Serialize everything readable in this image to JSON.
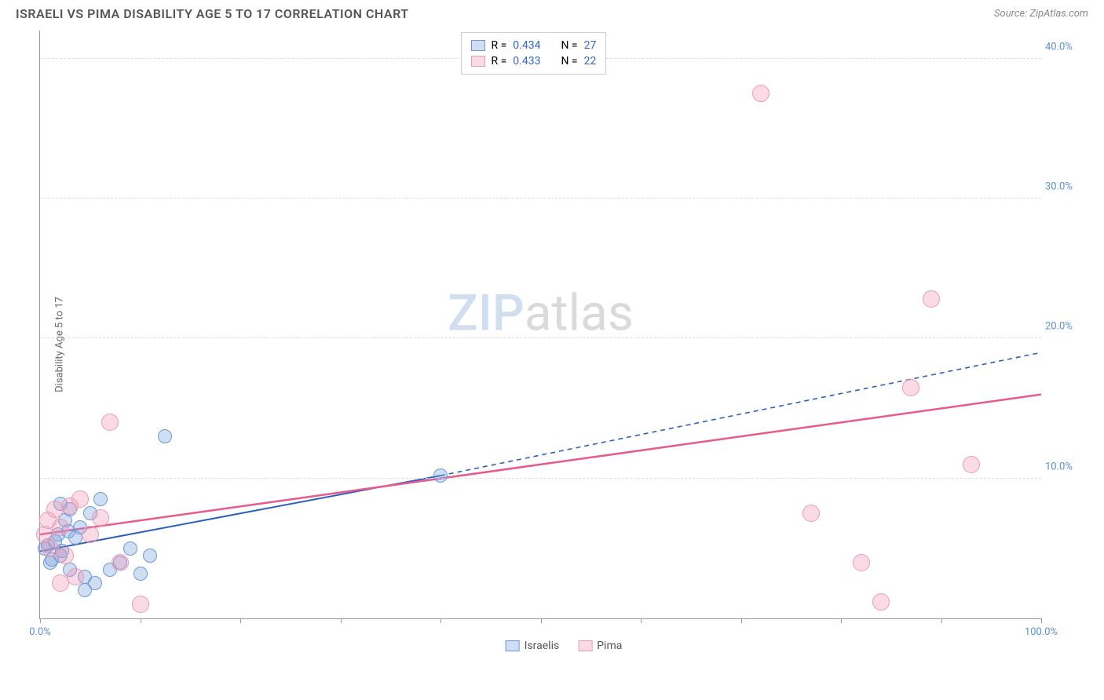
{
  "header": {
    "title": "ISRAELI VS PIMA DISABILITY AGE 5 TO 17 CORRELATION CHART",
    "source": "Source: ZipAtlas.com"
  },
  "chart": {
    "type": "scatter",
    "ylabel": "Disability Age 5 to 17",
    "xlim": [
      0,
      100
    ],
    "ylim": [
      0,
      42
    ],
    "xticks": [
      0,
      10,
      20,
      30,
      40,
      50,
      60,
      70,
      80,
      90,
      100
    ],
    "xtick_labels": {
      "0": "0.0%",
      "100": "100.0%"
    },
    "yticks": [
      10,
      20,
      30,
      40
    ],
    "ytick_labels": {
      "10": "10.0%",
      "20": "20.0%",
      "30": "30.0%",
      "40": "40.0%"
    },
    "grid_color": "#dddddd",
    "background_color": "#ffffff",
    "watermark": {
      "text1": "ZIP",
      "text2": "atlas"
    },
    "series": [
      {
        "name": "Israelis",
        "fill_color": "rgba(120,160,220,0.35)",
        "stroke_color": "#6A9AD6",
        "marker_radius": 9,
        "trend": {
          "x1": 0,
          "y1": 4.8,
          "x2": 40,
          "y2": 10.2,
          "color": "#2E5FBF",
          "width": 2,
          "dash_x1": 40,
          "dash_y1": 10.2,
          "dash_x2": 100,
          "dash_y2": 19.0,
          "dash": "6,5"
        },
        "points": [
          [
            0.5,
            5.0
          ],
          [
            0.8,
            5.2
          ],
          [
            1.0,
            4.0
          ],
          [
            1.2,
            4.2
          ],
          [
            1.5,
            5.5
          ],
          [
            1.8,
            6.0
          ],
          [
            2.0,
            4.5
          ],
          [
            2.2,
            4.8
          ],
          [
            2.5,
            7.0
          ],
          [
            2.8,
            6.2
          ],
          [
            3.0,
            3.5
          ],
          [
            3.5,
            5.8
          ],
          [
            4.0,
            6.5
          ],
          [
            4.5,
            3.0
          ],
          [
            5.0,
            7.5
          ],
          [
            5.5,
            2.5
          ],
          [
            6.0,
            8.5
          ],
          [
            7.0,
            3.5
          ],
          [
            8.0,
            4.0
          ],
          [
            9.0,
            5.0
          ],
          [
            10.0,
            3.2
          ],
          [
            11.0,
            4.5
          ],
          [
            4.5,
            2.0
          ],
          [
            12.5,
            13.0
          ],
          [
            3.0,
            7.8
          ],
          [
            2.0,
            8.2
          ],
          [
            40.0,
            10.2
          ]
        ]
      },
      {
        "name": "Pima",
        "fill_color": "rgba(240,150,180,0.35)",
        "stroke_color": "#E89BB5",
        "marker_radius": 11,
        "trend": {
          "x1": 0,
          "y1": 6.0,
          "x2": 100,
          "y2": 16.0,
          "color": "#E85A8B",
          "width": 2.5,
          "dash": null
        },
        "points": [
          [
            0.5,
            6.0
          ],
          [
            0.8,
            7.0
          ],
          [
            1.0,
            5.0
          ],
          [
            1.5,
            7.8
          ],
          [
            2.0,
            6.5
          ],
          [
            2.5,
            4.5
          ],
          [
            3.0,
            8.0
          ],
          [
            3.5,
            3.0
          ],
          [
            4.0,
            8.5
          ],
          [
            5.0,
            6.0
          ],
          [
            6.0,
            7.2
          ],
          [
            7.0,
            14.0
          ],
          [
            8.0,
            4.0
          ],
          [
            10.0,
            1.0
          ],
          [
            2.0,
            2.5
          ],
          [
            72.0,
            37.5
          ],
          [
            77.0,
            7.5
          ],
          [
            82.0,
            4.0
          ],
          [
            84.0,
            1.2
          ],
          [
            87.0,
            16.5
          ],
          [
            89.0,
            22.8
          ],
          [
            93.0,
            11.0
          ]
        ]
      }
    ],
    "legend_top": {
      "rows": [
        {
          "series": 0,
          "r_label": "R =",
          "r_val": "0.434",
          "n_label": "N =",
          "n_val": "27"
        },
        {
          "series": 1,
          "r_label": "R =",
          "r_val": "0.433",
          "n_label": "N =",
          "n_val": "22"
        }
      ]
    },
    "legend_bottom": [
      {
        "series": 0,
        "label": "Israelis"
      },
      {
        "series": 1,
        "label": "Pima"
      }
    ]
  }
}
